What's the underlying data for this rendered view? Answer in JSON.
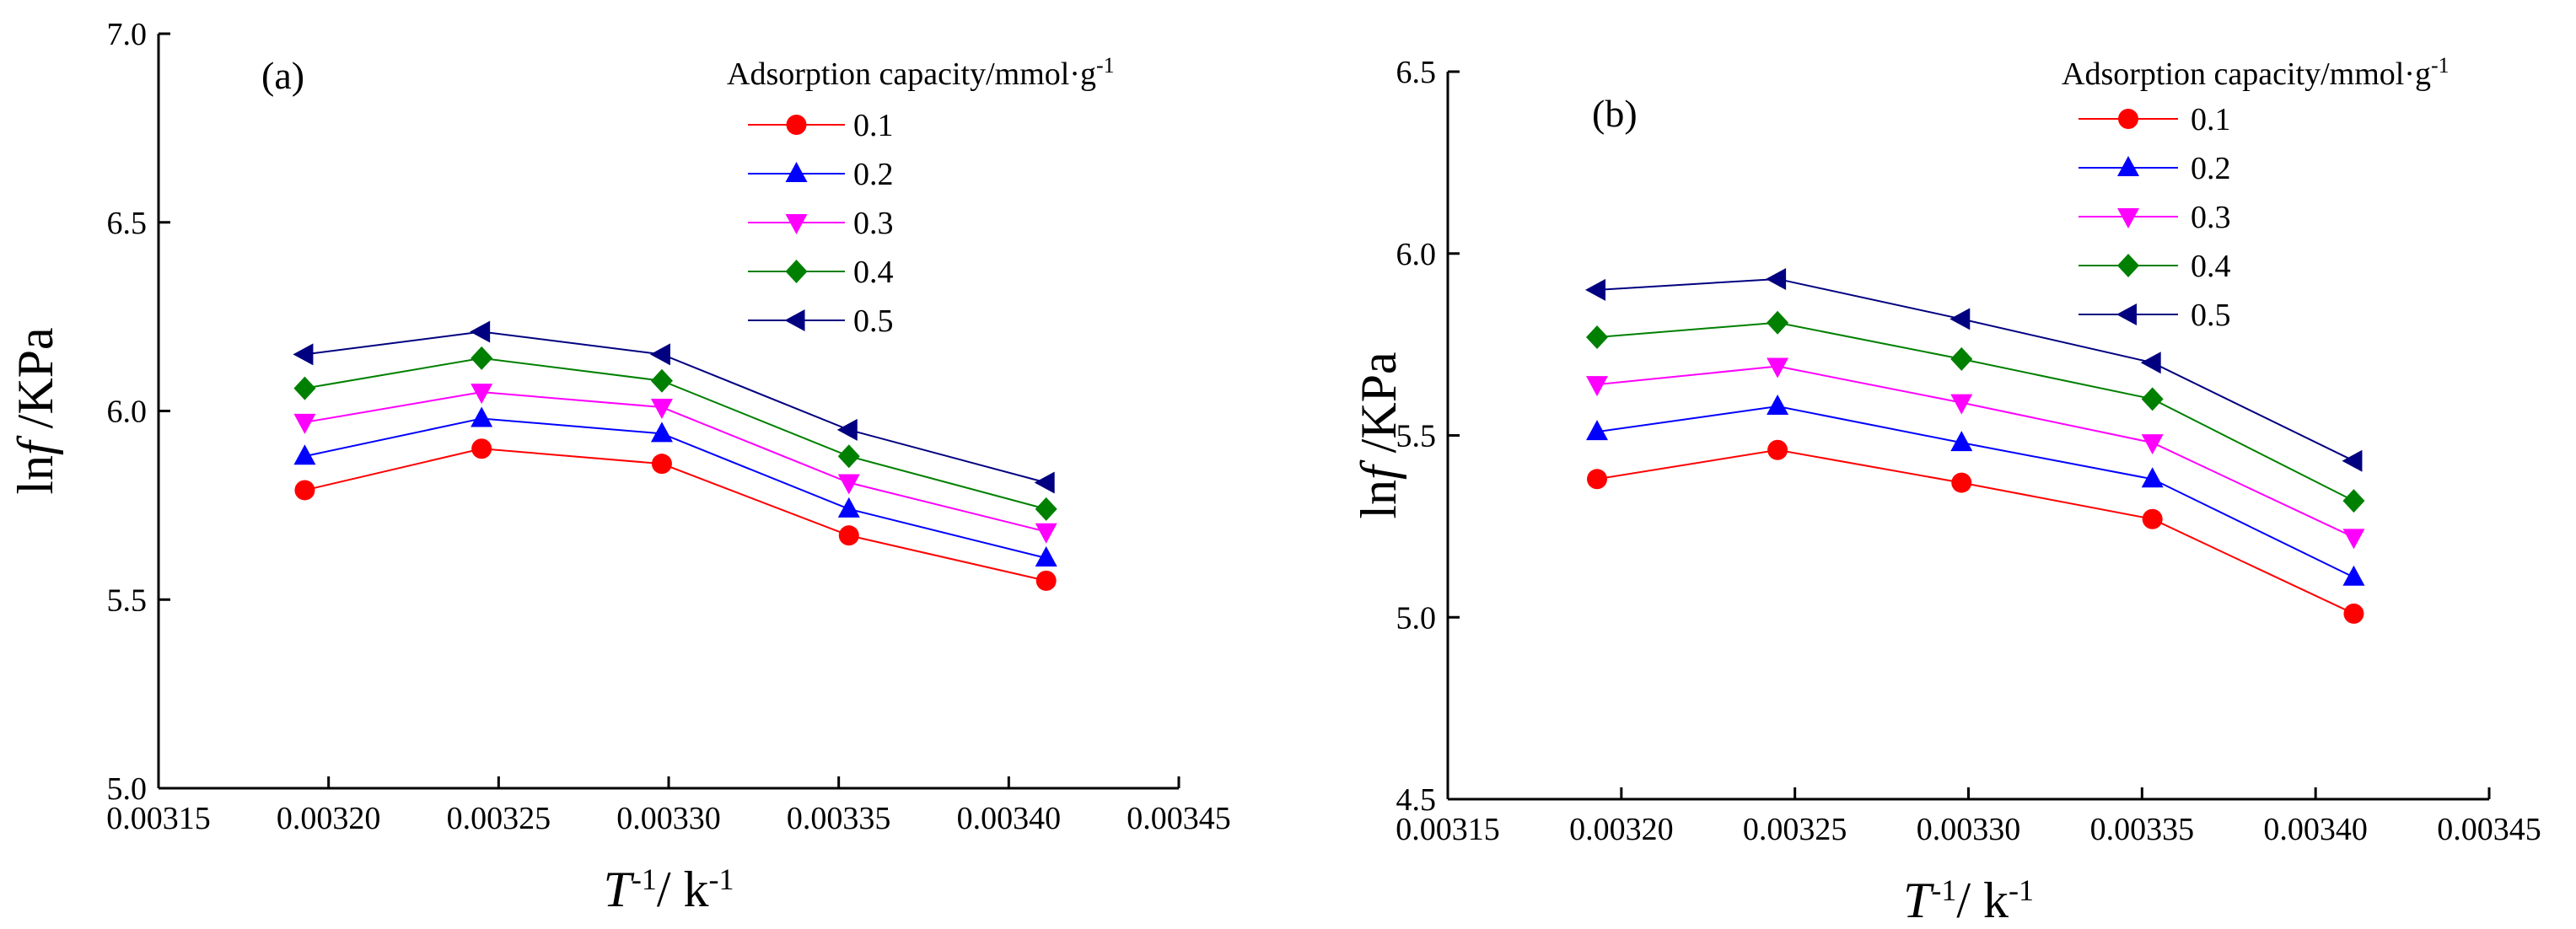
{
  "chart_data": [
    {
      "type": "line",
      "panel_label": "(a)",
      "xlabel_main": "T",
      "xlabel_sup": "-1",
      "xlabel_unit": "/ k",
      "xlabel_unit_sup": "-1",
      "ylabel_prefix": "ln",
      "ylabel_var": "f",
      "ylabel_unit": " /KPa",
      "xlim": [
        0.00315,
        0.00345
      ],
      "ylim": [
        5.0,
        7.0
      ],
      "x_ticks": [
        0.00315,
        0.0032,
        0.00325,
        0.0033,
        0.00335,
        0.0034,
        0.00345
      ],
      "x_tick_labels": [
        "0.00315",
        "0.00320",
        "0.00325",
        "0.00330",
        "0.00335",
        "0.00340",
        "0.00345"
      ],
      "y_ticks": [
        5.0,
        5.5,
        6.0,
        6.5,
        7.0
      ],
      "y_tick_labels": [
        "5.0",
        "5.5",
        "6.0",
        "6.5",
        "7.0"
      ],
      "legend_title": "Adsorption capacity/mmol·g",
      "legend_title_sup": "-1",
      "legend_position": "top-right",
      "x": [
        0.003193,
        0.003245,
        0.003298,
        0.003353,
        0.003411
      ],
      "series": [
        {
          "name": "0.1",
          "marker": "circle",
          "color": "#ff0000",
          "values": [
            5.79,
            5.9,
            5.86,
            5.67,
            5.55
          ]
        },
        {
          "name": "0.2",
          "marker": "triangle-up",
          "color": "#0000ff",
          "values": [
            5.88,
            5.98,
            5.94,
            5.74,
            5.61
          ]
        },
        {
          "name": "0.3",
          "marker": "triangle-down",
          "color": "#ff00ff",
          "values": [
            5.97,
            6.05,
            6.01,
            5.81,
            5.68
          ]
        },
        {
          "name": "0.4",
          "marker": "diamond",
          "color": "#008000",
          "values": [
            6.06,
            6.14,
            6.08,
            5.88,
            5.74
          ]
        },
        {
          "name": "0.5",
          "marker": "triangle-left",
          "color": "#000080",
          "values": [
            6.15,
            6.21,
            6.15,
            5.95,
            5.81
          ]
        }
      ]
    },
    {
      "type": "line",
      "panel_label": "(b)",
      "xlabel_main": "T",
      "xlabel_sup": "-1",
      "xlabel_unit": "/ k",
      "xlabel_unit_sup": "-1",
      "ylabel_prefix": "ln",
      "ylabel_var": "f",
      "ylabel_unit": " /KPa",
      "xlim": [
        0.00315,
        0.00345
      ],
      "ylim": [
        4.5,
        6.5
      ],
      "x_ticks": [
        0.00315,
        0.0032,
        0.00325,
        0.0033,
        0.00335,
        0.0034,
        0.00345
      ],
      "x_tick_labels": [
        "0.00315",
        "0.00320",
        "0.00325",
        "0.00330",
        "0.00335",
        "0.00340",
        "0.00345"
      ],
      "y_ticks": [
        4.5,
        5.0,
        5.5,
        6.0,
        6.5
      ],
      "y_tick_labels": [
        "4.5",
        "5.0",
        "5.5",
        "6.0",
        "6.5"
      ],
      "legend_title": "Adsorption capacity/mmol·g",
      "legend_title_sup": "-1",
      "legend_position": "top-right",
      "x": [
        0.003193,
        0.003245,
        0.003298,
        0.003353,
        0.003411
      ],
      "series": [
        {
          "name": "0.1",
          "marker": "circle",
          "color": "#ff0000",
          "values": [
            5.38,
            5.46,
            5.37,
            5.27,
            5.01
          ]
        },
        {
          "name": "0.2",
          "marker": "triangle-up",
          "color": "#0000ff",
          "values": [
            5.51,
            5.58,
            5.48,
            5.38,
            5.11
          ]
        },
        {
          "name": "0.3",
          "marker": "triangle-down",
          "color": "#ff00ff",
          "values": [
            5.64,
            5.69,
            5.59,
            5.48,
            5.22
          ]
        },
        {
          "name": "0.4",
          "marker": "diamond",
          "color": "#008000",
          "values": [
            5.77,
            5.81,
            5.71,
            5.6,
            5.32
          ]
        },
        {
          "name": "0.5",
          "marker": "triangle-left",
          "color": "#000080",
          "values": [
            5.9,
            5.93,
            5.82,
            5.7,
            5.43
          ]
        }
      ]
    }
  ]
}
